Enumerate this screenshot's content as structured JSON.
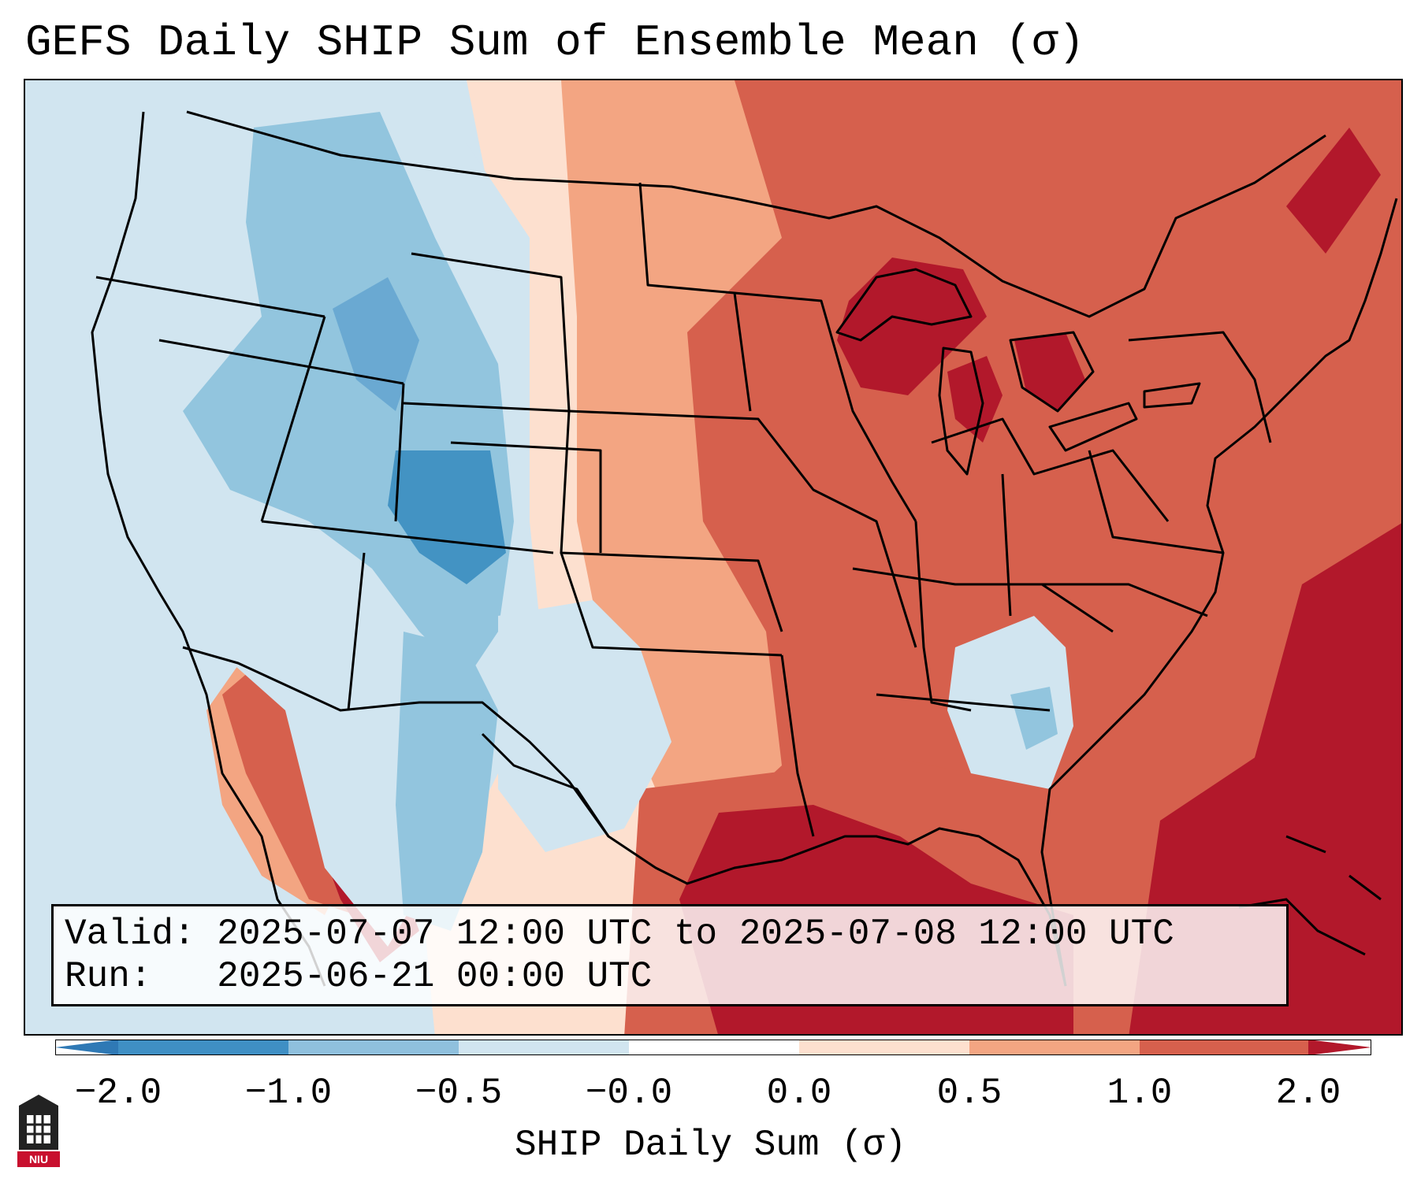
{
  "title": "GEFS Daily SHIP Sum of Ensemble Mean (σ)",
  "info": {
    "valid_label": "Valid:",
    "valid_value": "2025-07-07 12:00 UTC to 2025-07-08 12:00 UTC",
    "run_label": "Run:",
    "run_value": "2025-06-21 00:00 UTC"
  },
  "colorbar": {
    "label": "SHIP Daily Sum (σ)",
    "ticks": [
      "−2.0",
      "−1.0",
      "−0.5",
      "−0.0",
      "0.0",
      "0.5",
      "1.0",
      "2.0"
    ],
    "colors": [
      "#3f8fc4",
      "#8fc0dd",
      "#d1e5f0",
      "#fde0cf",
      "#f3a582",
      "#d6604d",
      "#b2182b"
    ]
  },
  "logo": {
    "text": "NIU"
  }
}
